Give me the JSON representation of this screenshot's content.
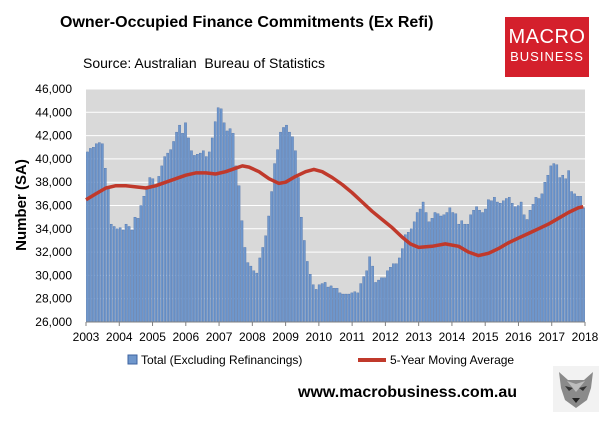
{
  "title": "Owner-Occupied Finance Commitments (Ex Refi)",
  "source": "Source: Australian  Bureau of Statistics",
  "logo": {
    "line1": "MACRO",
    "line2": "BUSINESS",
    "color": "#d4202c"
  },
  "footer_url": "www.macrobusiness.com.au",
  "colors": {
    "bar": "#6f97cc",
    "bar_edge": "#3e63a0",
    "line": "#c0392b",
    "plot_bg": "#d9d9d9",
    "grid": "#ffffff"
  },
  "chart_data": {
    "type": "bar",
    "ylabel": "Number (SA)",
    "xlabel": "",
    "ylim": [
      26000,
      46000
    ],
    "y_ticks": [
      "26,000",
      "28,000",
      "30,000",
      "32,000",
      "34,000",
      "36,000",
      "38,000",
      "40,000",
      "42,000",
      "44,000",
      "46,000"
    ],
    "x_ticks": [
      "2003",
      "2004",
      "2005",
      "2006",
      "2007",
      "2008",
      "2009",
      "2010",
      "2011",
      "2012",
      "2013",
      "2014",
      "2015",
      "2016",
      "2017",
      "2018"
    ],
    "x_start": 2003.0,
    "x_end": 2018.0,
    "grid": "horizontal",
    "legend_position": "bottom",
    "series": [
      {
        "name": "Total (Excluding Refinancings)",
        "type": "bar",
        "values": [
          40600,
          40900,
          41000,
          41300,
          41400,
          41300,
          39200,
          37400,
          34400,
          34200,
          34000,
          34100,
          33900,
          34400,
          34200,
          33900,
          35000,
          34900,
          36000,
          36800,
          37600,
          38400,
          38300,
          37700,
          38500,
          39400,
          40200,
          40500,
          40800,
          41500,
          42300,
          42900,
          42200,
          43100,
          41800,
          40700,
          40300,
          40400,
          40500,
          40700,
          40200,
          40600,
          41800,
          43200,
          44400,
          44300,
          43100,
          42400,
          42600,
          42200,
          39400,
          37700,
          34700,
          32400,
          31100,
          30800,
          30400,
          30200,
          31500,
          32400,
          33400,
          35100,
          37200,
          39600,
          40800,
          42300,
          42700,
          42900,
          42300,
          41900,
          40700,
          38400,
          35000,
          33000,
          31200,
          30100,
          29200,
          28800,
          29200,
          29300,
          29400,
          29000,
          29100,
          28900,
          28900,
          28500,
          28400,
          28400,
          28400,
          28500,
          28600,
          28500,
          29300,
          29900,
          30400,
          31600,
          30800,
          29400,
          29600,
          29800,
          29800,
          30400,
          30700,
          31000,
          31000,
          31500,
          32300,
          33500,
          33700,
          34000,
          34600,
          35400,
          35700,
          36300,
          35400,
          34600,
          34900,
          35400,
          35300,
          35100,
          35200,
          35400,
          35800,
          35400,
          35300,
          34400,
          34700,
          34400,
          34400,
          35200,
          35600,
          35900,
          35600,
          35400,
          35700,
          36500,
          36400,
          36700,
          36300,
          36200,
          36400,
          36600,
          36700,
          36200,
          35900,
          36000,
          36300,
          35200,
          34800,
          35600,
          36100,
          36700,
          36600,
          37000,
          38000,
          38600,
          39400,
          39600,
          39500,
          38400,
          38600,
          38300,
          39000,
          37200,
          37000,
          36800,
          36800,
          35800
        ]
      },
      {
        "name": "5-Year Moving Average",
        "type": "line",
        "points": [
          [
            2003.0,
            36500
          ],
          [
            2003.3,
            37000
          ],
          [
            2003.6,
            37500
          ],
          [
            2003.9,
            37700
          ],
          [
            2004.2,
            37700
          ],
          [
            2004.5,
            37600
          ],
          [
            2004.8,
            37500
          ],
          [
            2005.1,
            37700
          ],
          [
            2005.4,
            38000
          ],
          [
            2005.7,
            38300
          ],
          [
            2006.0,
            38600
          ],
          [
            2006.3,
            38800
          ],
          [
            2006.6,
            38800
          ],
          [
            2006.9,
            38700
          ],
          [
            2007.2,
            38900
          ],
          [
            2007.5,
            39200
          ],
          [
            2007.7,
            39400
          ],
          [
            2007.9,
            39300
          ],
          [
            2008.2,
            38900
          ],
          [
            2008.5,
            38300
          ],
          [
            2008.8,
            37900
          ],
          [
            2009.0,
            38000
          ],
          [
            2009.3,
            38500
          ],
          [
            2009.6,
            38900
          ],
          [
            2009.85,
            39100
          ],
          [
            2010.1,
            38900
          ],
          [
            2010.4,
            38400
          ],
          [
            2010.7,
            37800
          ],
          [
            2011.0,
            37100
          ],
          [
            2011.3,
            36300
          ],
          [
            2011.6,
            35500
          ],
          [
            2011.9,
            34800
          ],
          [
            2012.2,
            34100
          ],
          [
            2012.5,
            33300
          ],
          [
            2012.75,
            32700
          ],
          [
            2013.0,
            32400
          ],
          [
            2013.4,
            32500
          ],
          [
            2013.8,
            32700
          ],
          [
            2014.2,
            32500
          ],
          [
            2014.5,
            32000
          ],
          [
            2014.8,
            31700
          ],
          [
            2015.1,
            31900
          ],
          [
            2015.4,
            32300
          ],
          [
            2015.7,
            32800
          ],
          [
            2016.0,
            33200
          ],
          [
            2016.3,
            33600
          ],
          [
            2016.6,
            34000
          ],
          [
            2016.9,
            34400
          ],
          [
            2017.2,
            34900
          ],
          [
            2017.5,
            35400
          ],
          [
            2017.8,
            35800
          ],
          [
            2017.95,
            35900
          ]
        ]
      }
    ]
  }
}
